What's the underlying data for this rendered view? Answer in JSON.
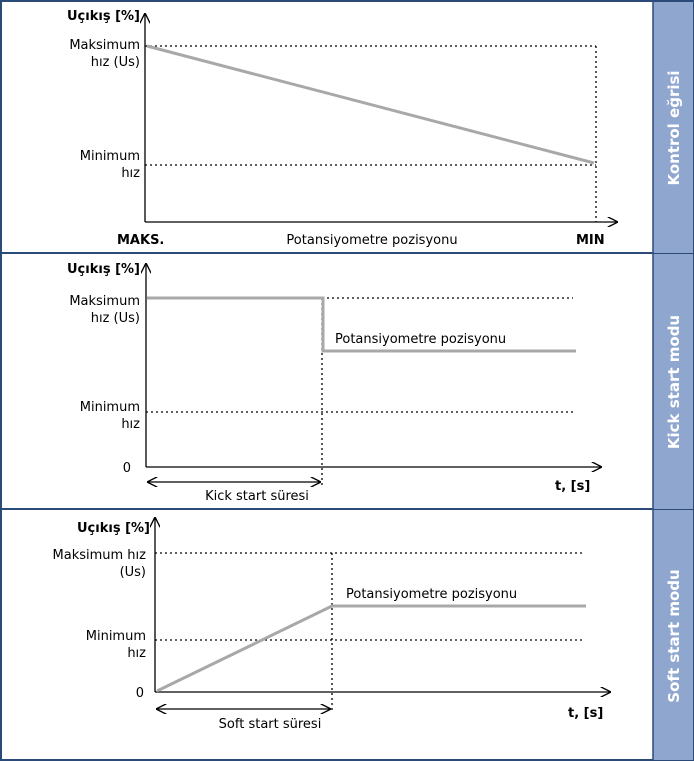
{
  "colors": {
    "frame": "#2b4a7a",
    "sidebar": "#8fa6cf",
    "curve": "#a8a8a8",
    "axis": "#000000"
  },
  "panel1": {
    "side_label": "Kontrol eğrisi",
    "y_title": "Uçıkış [%]",
    "max_label_1": "Maksimum",
    "max_label_2": "hız (Us)",
    "min_label_1": "Minimum",
    "min_label_2": "hız",
    "x_left": "MAKS.",
    "x_center": "Potansiyometre pozisyonu",
    "x_right": "MIN"
  },
  "panel2": {
    "side_label": "Kick start modu",
    "y_title": "Uçıkış [%]",
    "max_label_1": "Maksimum",
    "max_label_2": "hız (Us)",
    "min_label_1": "Minimum",
    "min_label_2": "hız",
    "zero": "0",
    "curve_label": "Potansiyometre pozisyonu",
    "duration_label": "Kick start süresi",
    "x_axis": "t, [s]"
  },
  "panel3": {
    "side_label": "Soft start modu",
    "y_title": "Uçıkış [%]",
    "max_label_1": "Maksimum hız",
    "max_label_2": "(Us)",
    "min_label_1": "Minimum",
    "min_label_2": "hız",
    "zero": "0",
    "curve_label": "Potansiyometre pozisyonu",
    "duration_label": "Soft start süresi",
    "x_axis": "t, [s]"
  }
}
